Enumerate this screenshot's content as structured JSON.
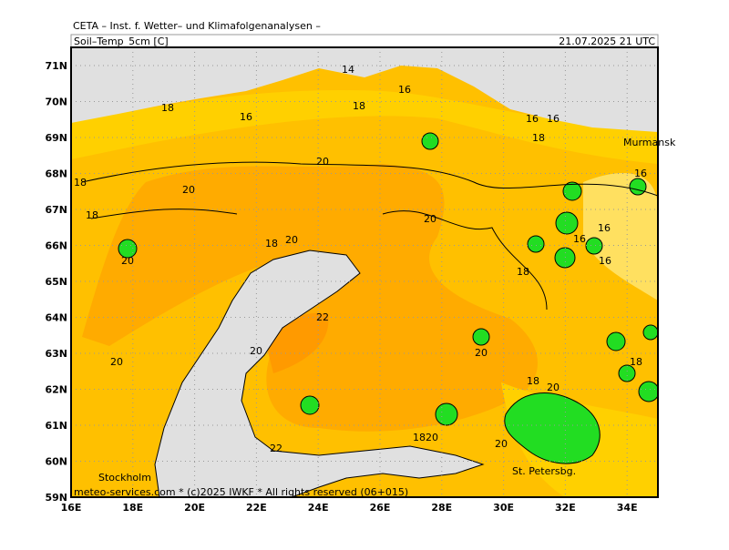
{
  "header": {
    "title": "CETA – Inst. f. Wetter– und Klimafolgenanalysen –",
    "parameter": "Soil–Temp_5cm [C]",
    "valid_time": "21.07.2025 21 UTC"
  },
  "map": {
    "lat_labels": [
      "71N",
      "70N",
      "69N",
      "68N",
      "67N",
      "66N",
      "65N",
      "64N",
      "63N",
      "62N",
      "61N",
      "60N",
      "59N"
    ],
    "lon_labels": [
      "16E",
      "18E",
      "20E",
      "22E",
      "24E",
      "26E",
      "28E",
      "30E",
      "32E",
      "34E"
    ],
    "places": [
      "Murmansk",
      "Stockholm",
      "St. Petersbg."
    ],
    "contour_labels": [
      "14",
      "16",
      "18",
      "16",
      "18",
      "16",
      "16",
      "18",
      "20",
      "20",
      "18",
      "18",
      "20",
      "16",
      "16",
      "16",
      "16",
      "18",
      "20",
      "20",
      "18",
      "22",
      "20",
      "20",
      "20",
      "18",
      "18",
      "20",
      "22",
      "1820",
      "20"
    ],
    "footer": "meteo-services.com * (c)2025 IWKF * All rights reserved (06+015)"
  }
}
